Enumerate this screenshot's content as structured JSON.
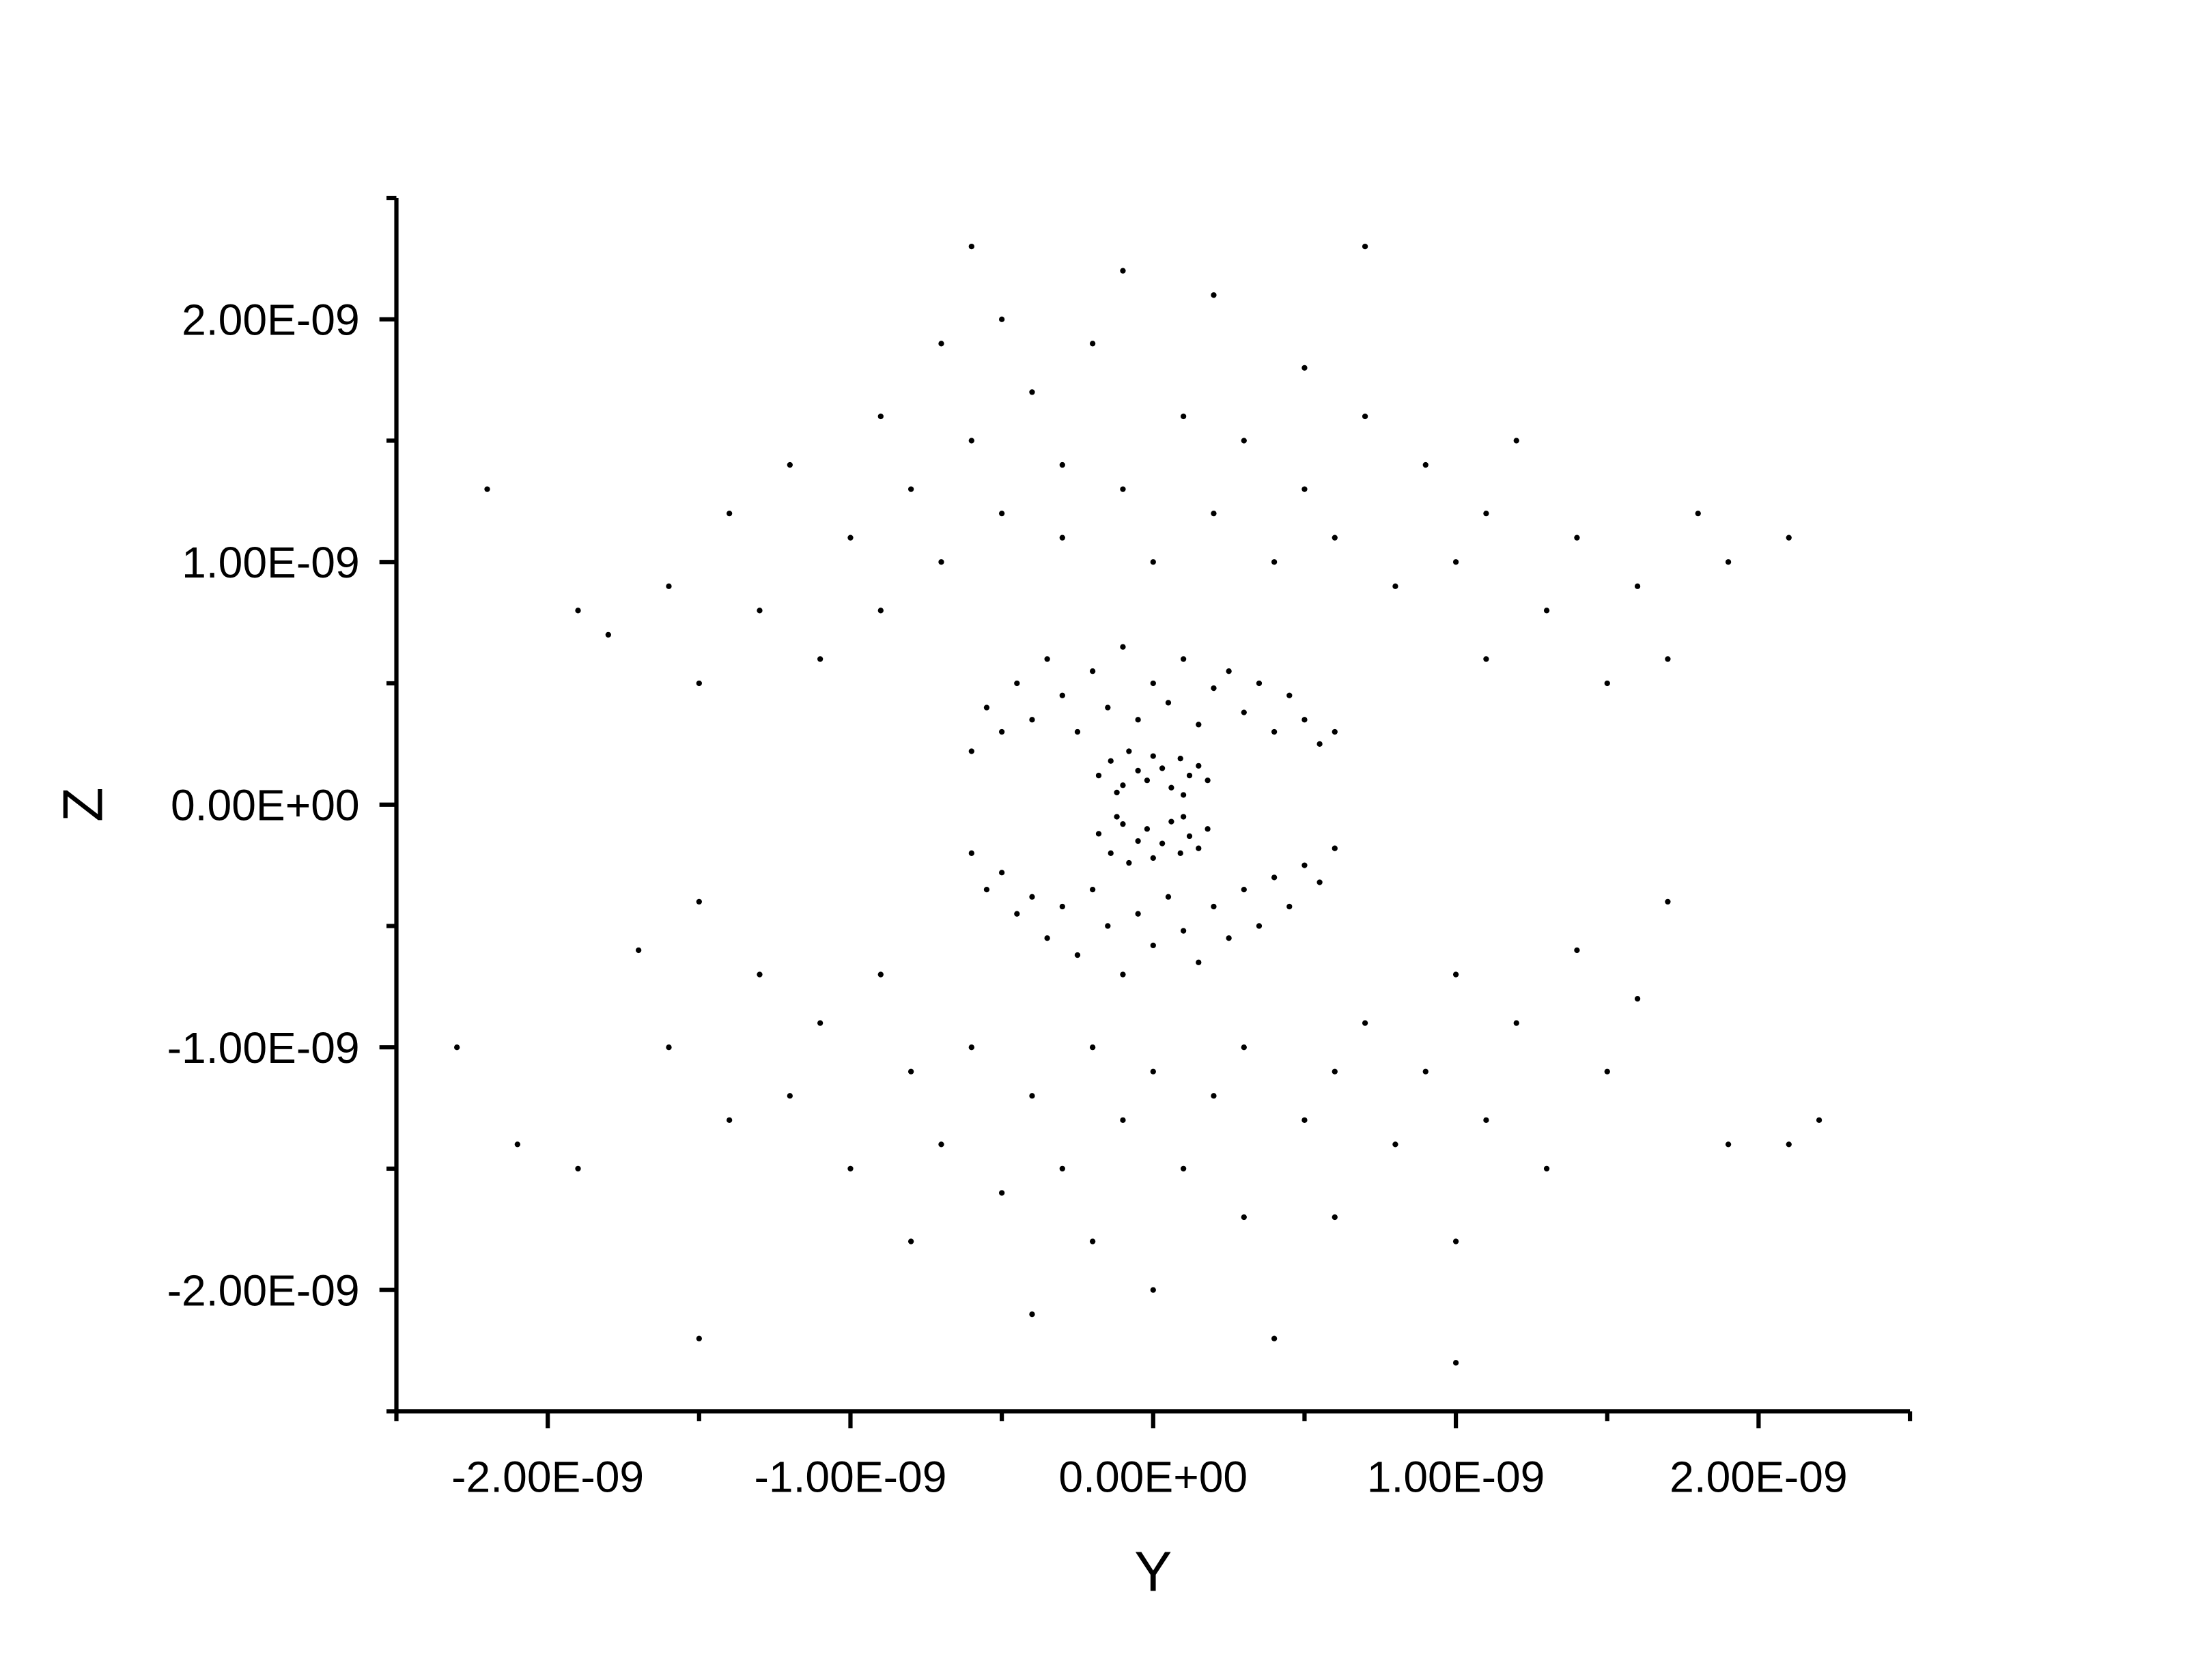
{
  "chart_data": {
    "type": "scatter",
    "color": "#000000",
    "xlabel": "Y",
    "ylabel": "Z",
    "xlim": [
      -2.5e-09,
      2.5e-09
    ],
    "ylim": [
      -2.5e-09,
      2.5e-09
    ],
    "xticks": [
      {
        "value": -2e-09,
        "label": "-2.00E-09"
      },
      {
        "value": -1e-09,
        "label": "-1.00E-09"
      },
      {
        "value": 0,
        "label": "0.00E+00"
      },
      {
        "value": 1e-09,
        "label": "1.00E-09"
      },
      {
        "value": 2e-09,
        "label": "2.00E-09"
      }
    ],
    "yticks": [
      {
        "value": -2e-09,
        "label": "-2.00E-09"
      },
      {
        "value": -1e-09,
        "label": "-1.00E-09"
      },
      {
        "value": 0,
        "label": "0.00E+00"
      },
      {
        "value": 1e-09,
        "label": "1.00E-09"
      },
      {
        "value": 2e-09,
        "label": "2.00E-09"
      }
    ],
    "xminorticks": [
      -2.5e-09,
      -1.5e-09,
      -5e-10,
      5e-10,
      1.5e-09,
      2.5e-09
    ],
    "yminorticks": [
      -2.5e-09,
      -1.5e-09,
      -5e-10,
      5e-10,
      1.5e-09,
      2.5e-09
    ],
    "x": [
      -1.8e-09,
      -1.6e-09,
      -1.5e-09,
      -1.4e-09,
      -1.3e-09,
      -1.2e-09,
      -1.1e-09,
      -1e-09,
      -9e-10,
      -9e-10,
      -8e-10,
      -7e-10,
      -7e-10,
      -6e-10,
      -5e-10,
      -5e-10,
      -4e-10,
      -3e-10,
      -3e-10,
      -2e-10,
      -1e-10,
      -1e-10,
      0,
      1e-10,
      2e-10,
      2e-10,
      3e-10,
      4e-10,
      5e-10,
      5e-10,
      6e-10,
      7e-10,
      8e-10,
      9e-10,
      1e-09,
      1.1e-09,
      1.1e-09,
      1.2e-09,
      1.3e-09,
      1.4e-09,
      1.5e-09,
      1.6e-09,
      1.7e-09,
      1.9e-09,
      -2.2e-09,
      2.1e-09,
      -6e-10,
      7e-10,
      -1.9e-09,
      1.8e-09,
      -1.7e-09,
      -1.6e-09,
      -1.5e-09,
      -1.4e-09,
      -1.3e-09,
      -1.2e-09,
      -1.1e-09,
      -1e-09,
      -9e-10,
      -8e-10,
      -8e-10,
      -7e-10,
      -6e-10,
      -5e-10,
      -4e-10,
      -4e-10,
      -3e-10,
      -2e-10,
      -2e-10,
      -1e-10,
      0,
      0,
      1e-10,
      2e-10,
      3e-10,
      3e-10,
      4e-10,
      5e-10,
      6e-10,
      6e-10,
      7e-10,
      8e-10,
      9e-10,
      1e-09,
      1e-09,
      1.1e-09,
      1.2e-09,
      1.3e-09,
      1.4e-09,
      1.5e-09,
      1.6e-09,
      1.7e-09,
      -2.3e-09,
      2.2e-09,
      -1.9e-09,
      1.9e-09,
      1e-09,
      -1.5e-09,
      2.1e-09,
      -2.1e-09,
      -5.5e-10,
      -5e-10,
      -4.5e-10,
      -4e-10,
      -3.5e-10,
      -3e-10,
      -2.5e-10,
      -2e-10,
      -1.5e-10,
      -1e-10,
      -5e-11,
      0,
      5e-11,
      1e-10,
      1.5e-10,
      2e-10,
      2.5e-10,
      3e-10,
      3.5e-10,
      4e-10,
      4.5e-10,
      5e-10,
      5.5e-10,
      -6e-10,
      6e-10,
      -6e-10,
      -5.5e-10,
      -5e-10,
      -4.5e-10,
      -4e-10,
      -3.5e-10,
      -3e-10,
      -2.5e-10,
      -2e-10,
      -1.5e-10,
      -1e-10,
      -5e-11,
      0,
      5e-11,
      1e-10,
      1.5e-10,
      2e-10,
      2.5e-10,
      3e-10,
      3.5e-10,
      4e-10,
      4.5e-10,
      5e-10,
      5.5e-10,
      6e-10,
      -1.8e-10,
      -1.4e-10,
      -1e-10,
      -8e-11,
      -5e-11,
      -2e-11,
      0,
      3e-11,
      6e-11,
      9e-11,
      1.2e-10,
      1.5e-10,
      1.8e-10,
      -1.2e-10,
      1e-10,
      -1.8e-10,
      -1.4e-10,
      -1e-10,
      -8e-11,
      -5e-11,
      -2e-11,
      0,
      3e-11,
      6e-11,
      9e-11,
      1.2e-10,
      1.5e-10,
      1.8e-10,
      -1.2e-10,
      1e-10
    ],
    "values": [
      7e-10,
      9e-10,
      5e-10,
      1.2e-09,
      8e-10,
      1.4e-09,
      6e-10,
      1.1e-09,
      1.6e-09,
      8e-10,
      1.3e-09,
      1.9e-09,
      1e-09,
      1.5e-09,
      1.2e-09,
      2e-09,
      1.7e-09,
      1.1e-09,
      1.4e-09,
      1.9e-09,
      1.3e-09,
      2.2e-09,
      1e-09,
      1.6e-09,
      1.2e-09,
      2.1e-09,
      1.5e-09,
      1e-09,
      1.8e-09,
      1.3e-09,
      1.1e-09,
      1.6e-09,
      9e-10,
      1.4e-09,
      1e-09,
      6e-10,
      1.2e-09,
      1.5e-09,
      8e-10,
      1.1e-09,
      5e-10,
      9e-10,
      6e-10,
      1e-09,
      1.3e-09,
      1.1e-09,
      2.3e-09,
      2.3e-09,
      8e-10,
      1.2e-09,
      -6e-10,
      -1e-09,
      -4e-10,
      -1.3e-09,
      -7e-10,
      -1.2e-09,
      -9e-10,
      -1.5e-09,
      -7e-10,
      -1.1e-09,
      -1.8e-09,
      -1.4e-09,
      -1e-09,
      -1.6e-09,
      -1.2e-09,
      -2.1e-09,
      -1.5e-09,
      -1e-09,
      -1.8e-09,
      -1.3e-09,
      -1.1e-09,
      -2e-09,
      -1.5e-09,
      -1.2e-09,
      -1.7e-09,
      -1e-09,
      -2.2e-09,
      -1.3e-09,
      -1.1e-09,
      -1.7e-09,
      -9e-10,
      -1.4e-09,
      -1.1e-09,
      -7e-10,
      -1.8e-09,
      -1.3e-09,
      -9e-10,
      -1.5e-09,
      -6e-10,
      -1.1e-09,
      -8e-10,
      -4e-10,
      -1e-09,
      -1.3e-09,
      -1.5e-09,
      -1.4e-09,
      -2.3e-09,
      -2.2e-09,
      -1.4e-09,
      -1.4e-09,
      4e-10,
      3e-10,
      5e-10,
      3.5e-10,
      6e-10,
      4.5e-10,
      3e-10,
      5.5e-10,
      4e-10,
      6.5e-10,
      3.5e-10,
      5e-10,
      4.2e-10,
      6e-10,
      3.3e-10,
      4.8e-10,
      5.5e-10,
      3.8e-10,
      5e-10,
      3e-10,
      4.5e-10,
      3.5e-10,
      2.5e-10,
      2.2e-10,
      3e-10,
      -2e-10,
      -3.5e-10,
      -2.8e-10,
      -4.5e-10,
      -3.8e-10,
      -5.5e-10,
      -4.2e-10,
      -6.2e-10,
      -3.5e-10,
      -5e-10,
      -7e-10,
      -4.5e-10,
      -5.8e-10,
      -3.8e-10,
      -5.2e-10,
      -6.5e-10,
      -4.2e-10,
      -5.5e-10,
      -3.5e-10,
      -5e-10,
      -3e-10,
      -4.2e-10,
      -2.5e-10,
      -3.2e-10,
      -1.8e-10,
      1.2e-10,
      1.8e-10,
      8e-11,
      2.2e-10,
      1.4e-10,
      1e-10,
      2e-10,
      1.5e-10,
      7e-11,
      1.9e-10,
      1.2e-10,
      1.6e-10,
      1e-10,
      5e-11,
      4e-11,
      -1.2e-10,
      -2e-10,
      -8e-11,
      -2.4e-10,
      -1.5e-10,
      -1e-10,
      -2.2e-10,
      -1.6e-10,
      -7e-11,
      -2e-10,
      -1.3e-10,
      -1.8e-10,
      -1e-10,
      -5e-11,
      -5e-11
    ]
  }
}
